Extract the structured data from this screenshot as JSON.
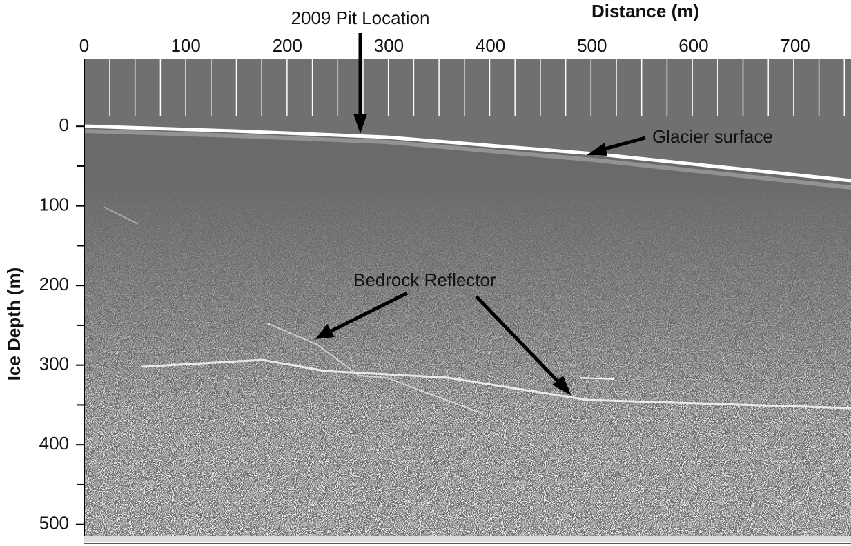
{
  "chart_data": {
    "type": "radargram",
    "xlabel": "Distance (m)",
    "ylabel": "Ice Depth (m)",
    "xlim": [
      0,
      755
    ],
    "xticks": [
      0,
      100,
      200,
      300,
      400,
      500,
      600,
      700
    ],
    "ylim": [
      -85,
      515
    ],
    "yticks": [
      0,
      100,
      200,
      300,
      400,
      500
    ],
    "yminorticks": [
      50,
      150,
      250,
      350,
      450
    ],
    "annotations": [
      "2009 Pit Location",
      "Glacier surface",
      "Bedrock Reflector"
    ]
  }
}
